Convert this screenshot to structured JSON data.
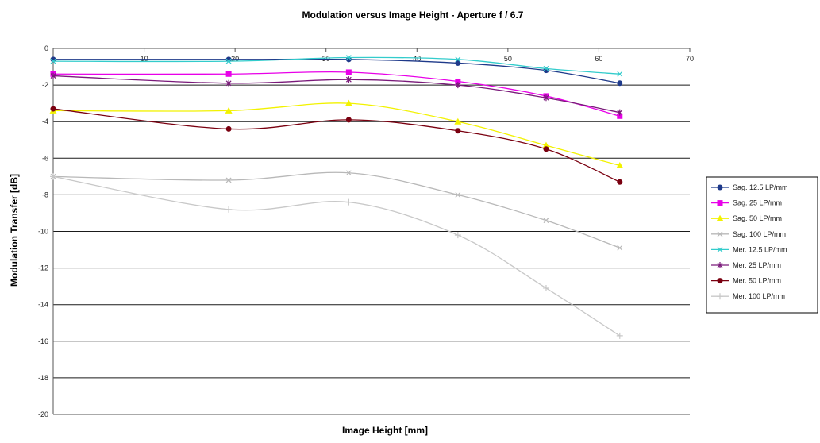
{
  "chart_data": {
    "type": "line",
    "title": "Modulation versus Image Height - Aperture f / 6.7",
    "xlabel": "Image Height [mm]",
    "ylabel": "Modulation Transfer [dB]",
    "xlim": [
      0,
      70
    ],
    "ylim": [
      -20,
      0
    ],
    "x_ticks": [
      "10",
      "20",
      "30",
      "40",
      "50",
      "60",
      "70"
    ],
    "y_ticks": [
      "0",
      "-2",
      "-4",
      "-6",
      "-8",
      "-10",
      "-12",
      "-14",
      "-16",
      "-18",
      "-20"
    ],
    "grid": "horizontal",
    "legend_position": "right",
    "x": [
      0,
      19.3,
      32.5,
      44.5,
      54.2,
      62.3
    ],
    "series": [
      {
        "name": "Sag. 12.5 LP/mm",
        "color": "#1f3a8a",
        "marker": "circle",
        "values": [
          -0.6,
          -0.6,
          -0.6,
          -0.8,
          -1.2,
          -1.9
        ]
      },
      {
        "name": "Sag. 25 LP/mm",
        "color": "#e800e8",
        "marker": "square",
        "values": [
          -1.4,
          -1.4,
          -1.3,
          -1.8,
          -2.6,
          -3.7
        ]
      },
      {
        "name": "Sag. 50 LP/mm",
        "color": "#f2f200",
        "marker": "triangle",
        "values": [
          -3.4,
          -3.4,
          -3.0,
          -4.0,
          -5.3,
          -6.4
        ]
      },
      {
        "name": "Sag. 100 LP/mm",
        "color": "#b8b8b8",
        "marker": "x",
        "values": [
          -7.0,
          -7.2,
          -6.8,
          -8.0,
          -9.4,
          -10.9
        ]
      },
      {
        "name": "Mer. 12.5 LP/mm",
        "color": "#33cccc",
        "marker": "x",
        "values": [
          -0.7,
          -0.7,
          -0.5,
          -0.6,
          -1.1,
          -1.4
        ]
      },
      {
        "name": "Mer. 25 LP/mm",
        "color": "#7a1a7a",
        "marker": "star",
        "values": [
          -1.5,
          -1.9,
          -1.7,
          -2.0,
          -2.7,
          -3.5
        ]
      },
      {
        "name": "Mer. 50 LP/mm",
        "color": "#7a0010",
        "marker": "circle",
        "values": [
          -3.3,
          -4.4,
          -3.9,
          -4.5,
          -5.5,
          -7.3
        ]
      },
      {
        "name": "Mer. 100 LP/mm",
        "color": "#c8c8c8",
        "marker": "plus",
        "values": [
          -7.0,
          -8.8,
          -8.4,
          -10.2,
          -13.1,
          -15.7
        ]
      }
    ]
  }
}
